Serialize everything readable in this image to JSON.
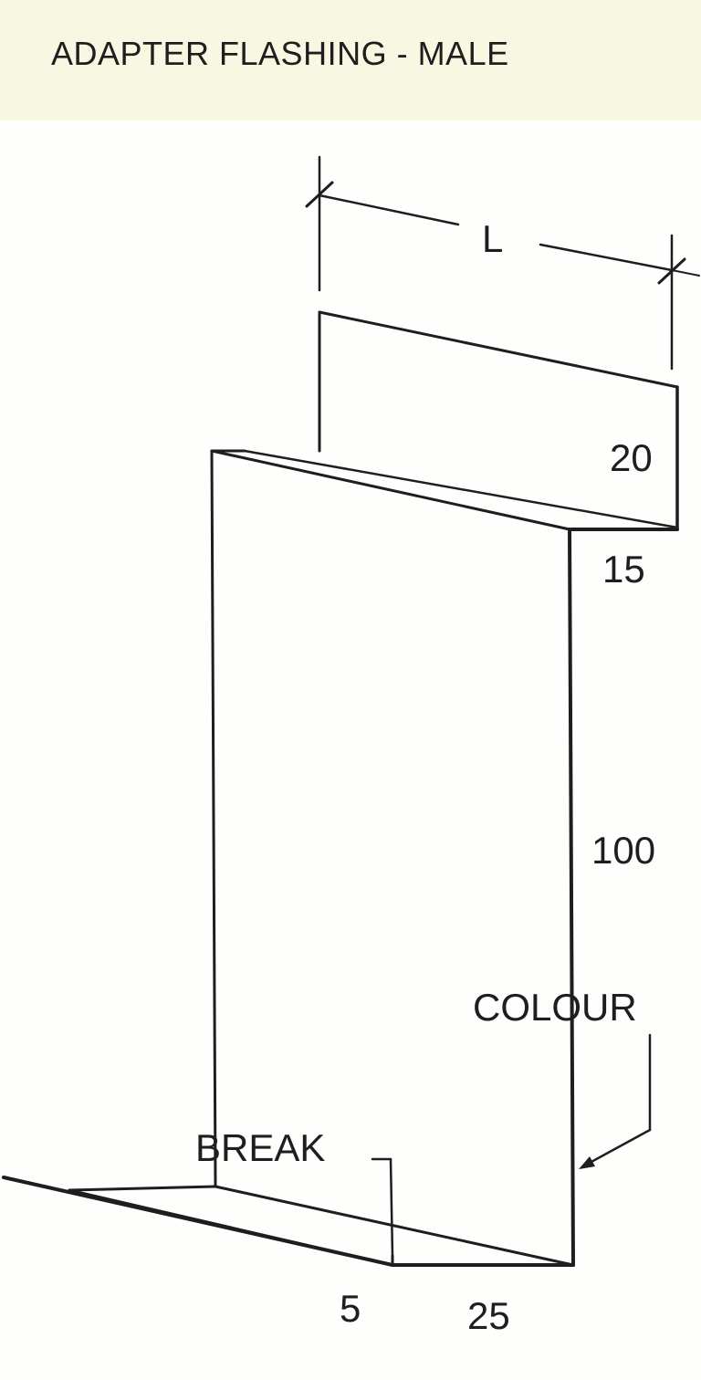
{
  "title": "ADAPTER FLASHING - MALE",
  "dimensions": {
    "length": "L",
    "top_flange": "20",
    "step": "15",
    "height": "100",
    "bottom_small": "5",
    "bottom_leg": "25"
  },
  "callouts": {
    "colour": "COLOUR",
    "break": "BREAK"
  }
}
